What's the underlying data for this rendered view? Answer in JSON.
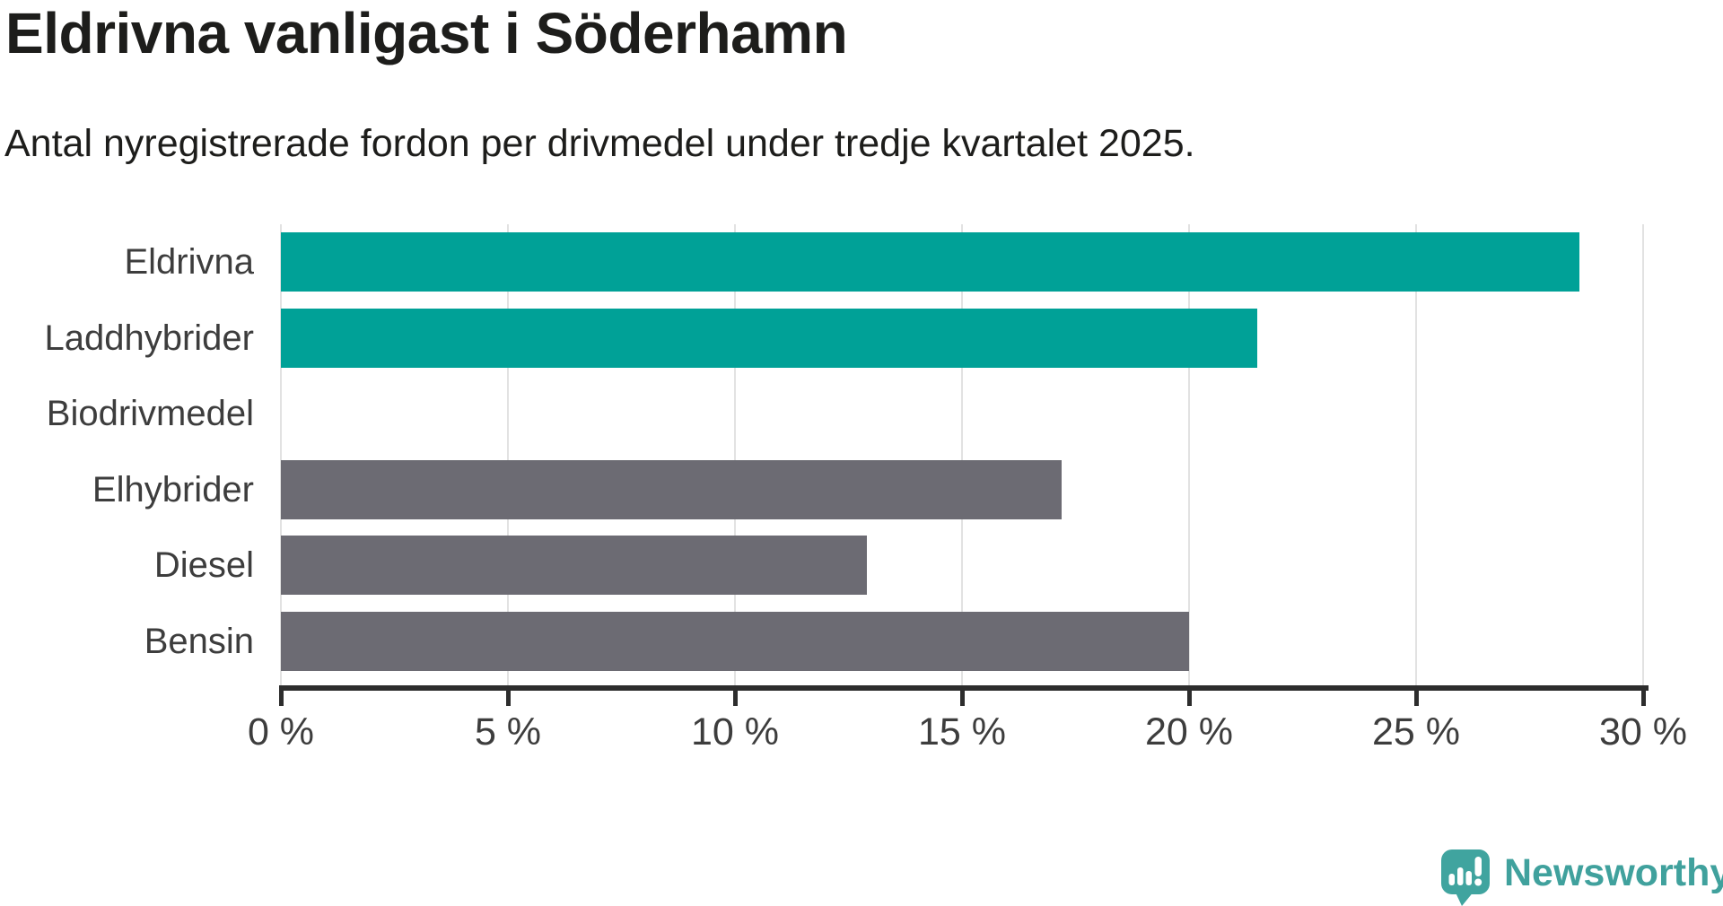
{
  "title": "Eldrivna vanligast i Söderhamn",
  "subtitle": "Antal nyregistrerade fordon per drivmedel under tredje kvartalet 2025.",
  "chart_data": {
    "type": "bar",
    "orientation": "horizontal",
    "title": "Eldrivna vanligast i Söderhamn",
    "subtitle": "Antal nyregistrerade fordon per drivmedel under tredje kvartalet 2025.",
    "categories": [
      "Eldrivna",
      "Laddhybrider",
      "Biodrivmedel",
      "Elhybrider",
      "Diesel",
      "Bensin"
    ],
    "values": [
      28.6,
      21.5,
      0,
      17.2,
      12.9,
      20
    ],
    "unit": "%",
    "xlim": [
      0,
      30
    ],
    "x_tick_values": [
      0,
      5,
      10,
      15,
      20,
      25,
      30
    ],
    "x_tick_labels": [
      "0 %",
      "5 %",
      "10 %",
      "15 %",
      "20 %",
      "25 %",
      "30 %"
    ],
    "grid": true,
    "legend": "none",
    "colors": {
      "highlight": "#00a197",
      "default": "#6c6b73",
      "gridline": "#e2e2e2",
      "axis": "#2d2d2d"
    },
    "bar_colors": [
      "#00a197",
      "#00a197",
      "#6c6b73",
      "#6c6b73",
      "#6c6b73",
      "#6c6b73"
    ]
  },
  "footer": {
    "brand": "Newsworthy",
    "brand_color": "#40a19d",
    "logo_icon": "bar-chart-speech-bubble-icon"
  }
}
